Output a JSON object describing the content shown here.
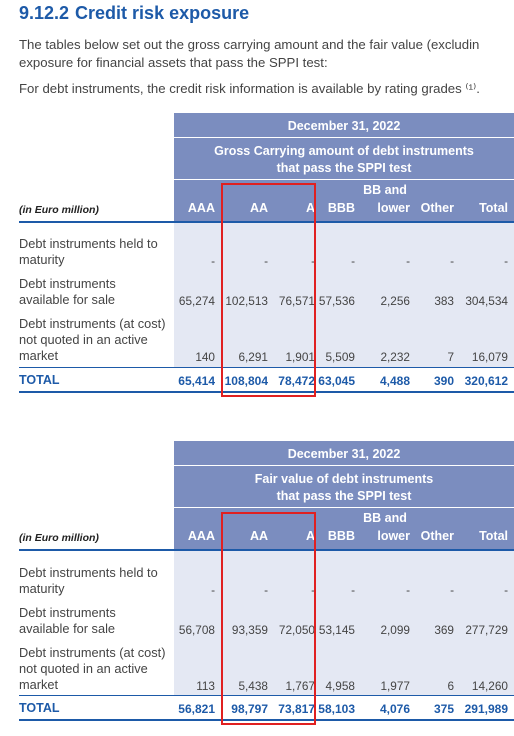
{
  "section": {
    "number": "9.12.2",
    "title": "Credit risk exposure"
  },
  "intro": {
    "line1": "The tables below set out the gross carrying amount and the fair value (excludin",
    "line2": "exposure for financial assets that pass the SPPI test:",
    "line3": "For debt instruments, the credit risk information is available by rating grades ⁽¹⁾."
  },
  "tables": [
    {
      "date": "December 31, 2022",
      "subtitle_line1": "Gross Carrying amount of debt instruments",
      "subtitle_line2": "that pass the SPPI test",
      "unit": "(in Euro million)",
      "columns": [
        "AAA",
        "AA",
        "A",
        "BBB",
        "BB and\nlower",
        "Other",
        "Total"
      ],
      "col_bb_line1": "BB and",
      "col_bb_line2": "lower",
      "rows": [
        {
          "label": "Debt instruments held to\nmaturity",
          "values": [
            "-",
            "-",
            "-",
            "-",
            "-",
            "-",
            "-"
          ]
        },
        {
          "label": "Debt instruments\navailable for sale",
          "values": [
            "65,274",
            "102,513",
            "76,571",
            "57,536",
            "2,256",
            "383",
            "304,534"
          ]
        },
        {
          "label": "Debt instruments (at cost)\nnot quoted in an active\nmarket",
          "values": [
            "140",
            "6,291",
            "1,901",
            "5,509",
            "2,232",
            "7",
            "16,079"
          ]
        }
      ],
      "total": {
        "label": "TOTAL",
        "values": [
          "65,414",
          "108,804",
          "78,472",
          "63,045",
          "4,488",
          "390",
          "320,612"
        ]
      }
    },
    {
      "date": "December 31, 2022",
      "subtitle_line1": "Fair value of debt instruments",
      "subtitle_line2": "that pass the SPPI test",
      "unit": "(in Euro million)",
      "columns": [
        "AAA",
        "AA",
        "A",
        "BBB",
        "BB and\nlower",
        "Other",
        "Total"
      ],
      "col_bb_line1": "BB and",
      "col_bb_line2": "lower",
      "rows": [
        {
          "label": "Debt instruments held to\nmaturity",
          "values": [
            "-",
            "-",
            "-",
            "-",
            "-",
            "-",
            "-"
          ]
        },
        {
          "label": "Debt instruments\navailable for sale",
          "values": [
            "56,708",
            "93,359",
            "72,050",
            "53,145",
            "2,099",
            "369",
            "277,729"
          ]
        },
        {
          "label": "Debt instruments (at cost)\nnot quoted in an active\nmarket",
          "values": [
            "113",
            "5,438",
            "1,767",
            "4,958",
            "1,977",
            "6",
            "14,260"
          ]
        }
      ],
      "total": {
        "label": "TOTAL",
        "values": [
          "56,821",
          "98,797",
          "73,817",
          "58,103",
          "4,076",
          "375",
          "291,989"
        ]
      }
    }
  ],
  "colors": {
    "header_bg": "#7b8dbf",
    "data_bg": "#e4e8f3",
    "accent": "#1d5aa8",
    "highlight": "#e02020"
  }
}
